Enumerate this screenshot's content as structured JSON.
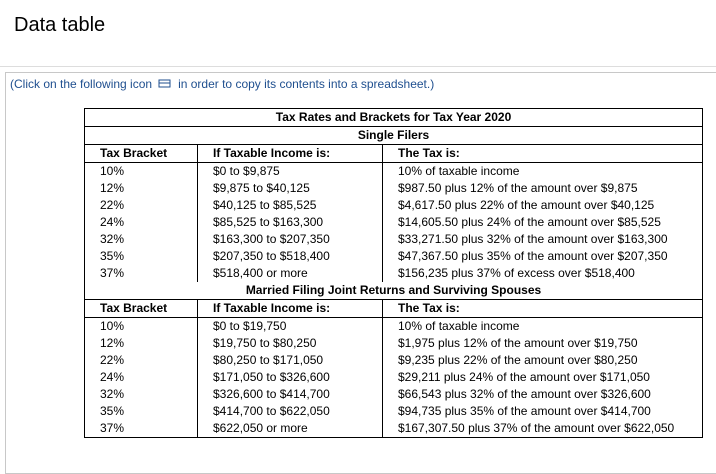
{
  "header": {
    "title": "Data table"
  },
  "instruction": {
    "before": "(Click on the following icon",
    "after": "in order to copy its contents into a spreadsheet.)"
  },
  "table": {
    "title": "Tax Rates and Brackets for Tax Year 2020",
    "sections": [
      {
        "name": "Single Filers",
        "headers": [
          "Tax Bracket",
          "If Taxable Income is:",
          "The Tax is:"
        ],
        "rows": [
          [
            "10%",
            "$0 to $9,875",
            "10% of taxable income"
          ],
          [
            "12%",
            "$9,875 to $40,125",
            "$987.50 plus 12% of the amount over $9,875"
          ],
          [
            "22%",
            "$40,125 to $85,525",
            "$4,617.50 plus 22% of the amount over $40,125"
          ],
          [
            "24%",
            "$85,525 to $163,300",
            "$14,605.50 plus 24% of the amount over $85,525"
          ],
          [
            "32%",
            "$163,300 to $207,350",
            "$33,271.50 plus 32% of the amount over $163,300"
          ],
          [
            "35%",
            "$207,350 to $518,400",
            "$47,367.50 plus 35% of the amount over $207,350"
          ],
          [
            "37%",
            "$518,400 or more",
            "$156,235 plus 37% of excess over $518,400"
          ]
        ]
      },
      {
        "name": "Married Filing Joint Returns and Surviving Spouses",
        "headers": [
          "Tax Bracket",
          "If Taxable Income is:",
          "The Tax is:"
        ],
        "rows": [
          [
            "10%",
            "$0 to $19,750",
            "10% of taxable income"
          ],
          [
            "12%",
            "$19,750 to $80,250",
            "$1,975 plus 12% of the amount over $19,750"
          ],
          [
            "22%",
            "$80,250 to $171,050",
            "$9,235 plus 22% of the amount over $80,250"
          ],
          [
            "24%",
            "$171,050 to $326,600",
            "$29,211 plus 24% of the amount over $171,050"
          ],
          [
            "32%",
            "$326,600 to $414,700",
            "$66,543 plus 32% of the amount over $326,600"
          ],
          [
            "35%",
            "$414,700 to $622,050",
            "$94,735 plus 35% of the amount over $414,700"
          ],
          [
            "37%",
            "$622,050 or more",
            "$167,307.50 plus 37% of the amount over $622,050"
          ]
        ]
      }
    ]
  }
}
